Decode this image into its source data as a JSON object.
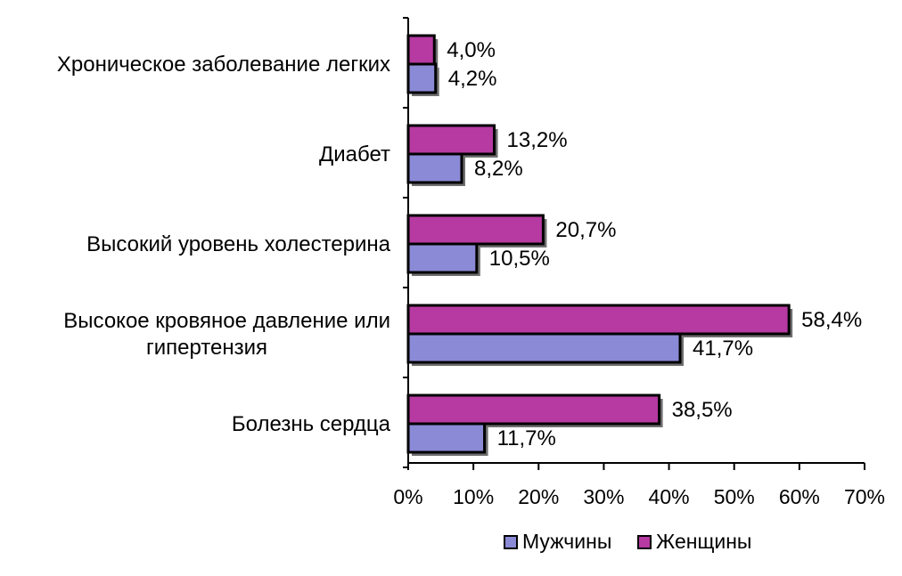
{
  "chart_data": {
    "type": "bar",
    "orientation": "horizontal",
    "categories": [
      [
        "Хроническое заболевание легких"
      ],
      [
        "Диабет"
      ],
      [
        "Высокий уровень холестерина"
      ],
      [
        "Высокое кровяное давление или",
        "гипертензия"
      ],
      [
        "Болезнь сердца"
      ]
    ],
    "series": [
      {
        "name": "Женщины",
        "color": "#b63aa1",
        "values": [
          4.0,
          13.2,
          20.7,
          58.4,
          38.5
        ],
        "labels": [
          "4,0%",
          "13,2%",
          "20,7%",
          "58,4%",
          "38,5%"
        ]
      },
      {
        "name": "Мужчины",
        "color": "#8a8ad6",
        "values": [
          4.2,
          8.2,
          10.5,
          41.7,
          11.7
        ],
        "labels": [
          "4,2%",
          "8,2%",
          "10,5%",
          "41,7%",
          "11,7%"
        ]
      }
    ],
    "legend": {
      "position": "bottom",
      "order": [
        "Мужчины",
        "Женщины"
      ]
    },
    "xlim": [
      0,
      70
    ],
    "xticks": [
      "0%",
      "10%",
      "20%",
      "30%",
      "40%",
      "50%",
      "60%",
      "70%"
    ],
    "grid": false
  }
}
